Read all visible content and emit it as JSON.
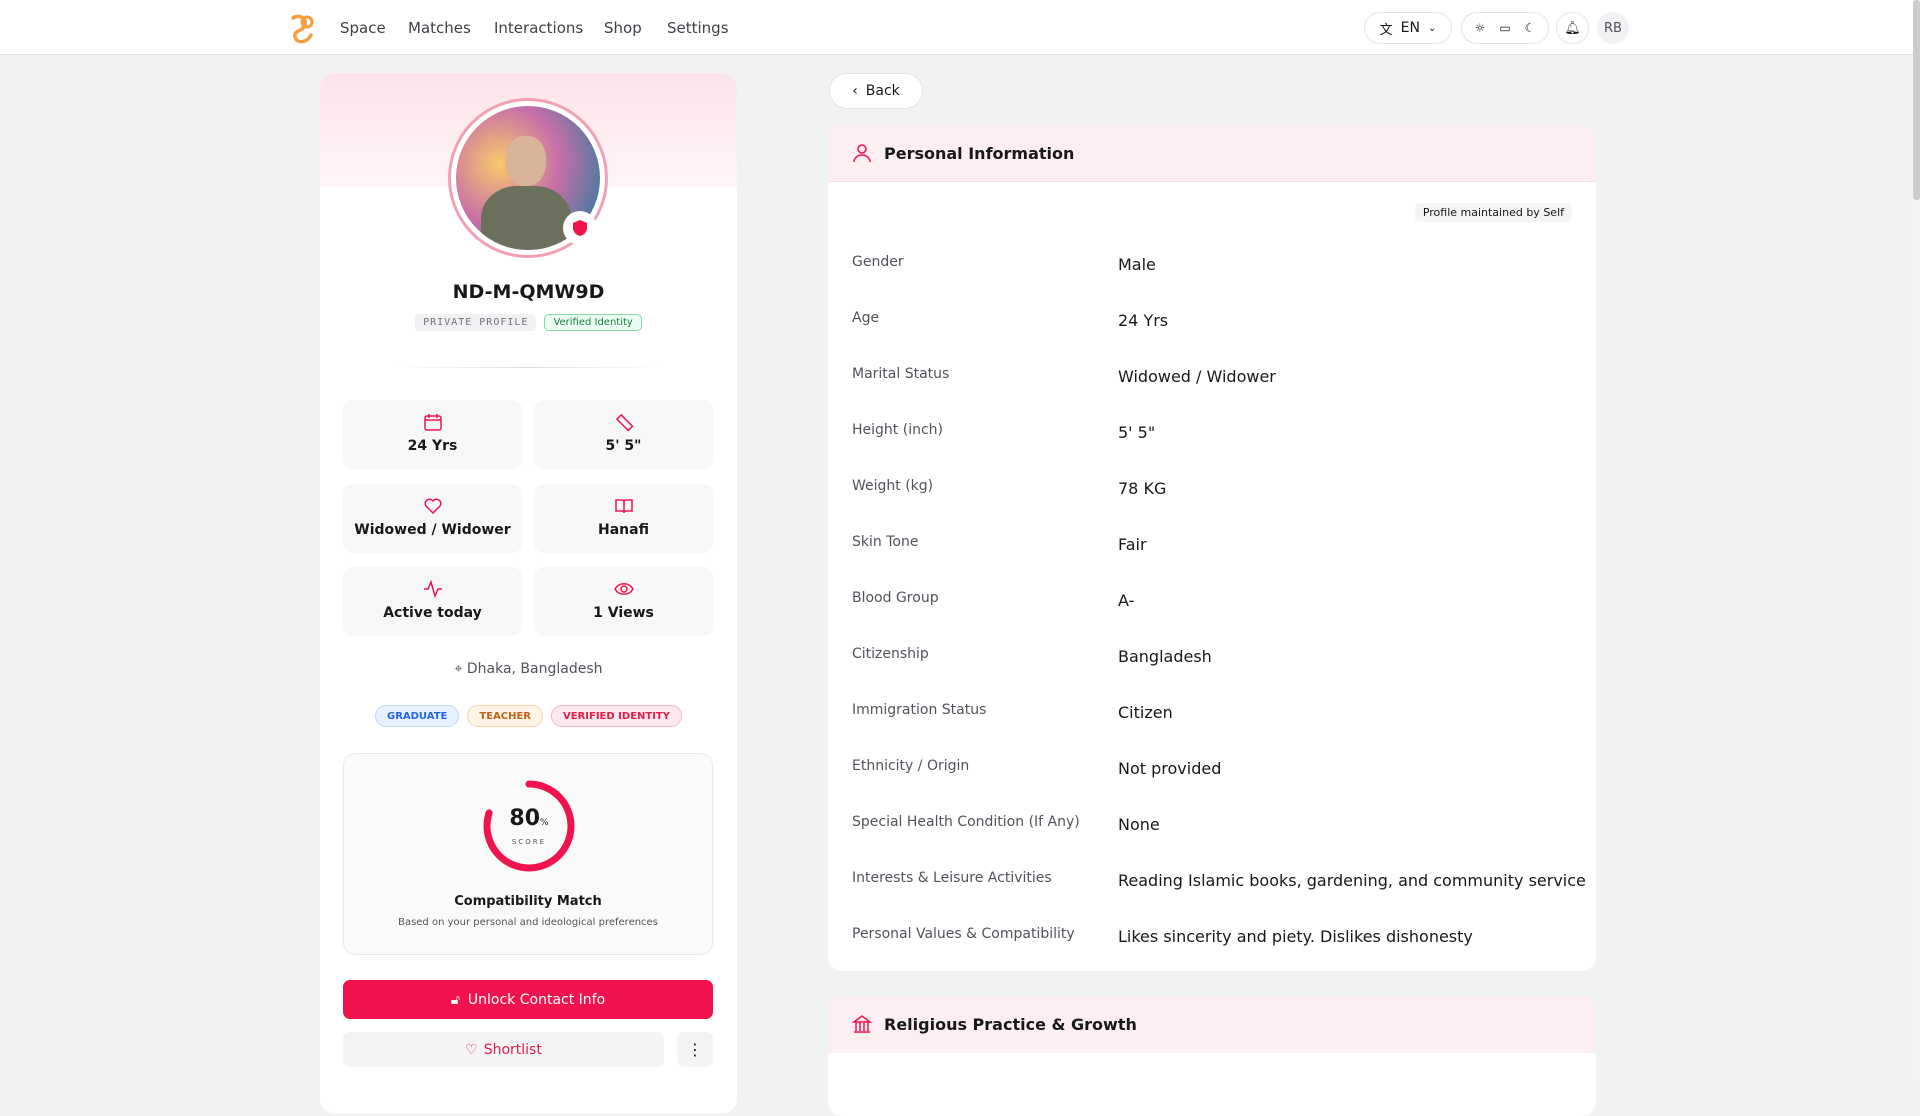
{
  "nav": {
    "items": [
      "Space",
      "Matches",
      "Interactions",
      "Shop",
      "Settings"
    ],
    "language": "EN",
    "avatar": "RB"
  },
  "profile": {
    "name": "ND-M-QMW9D",
    "badges": [
      "PRIVATE PROFILE",
      "Verified Identity"
    ],
    "stats": [
      "24 Yrs",
      "5' 5\"",
      "Widowed / Widower",
      "Hanafi",
      "Active today",
      "1 Views"
    ],
    "location": "Dhaka, Bangladesh",
    "tags": [
      "GRADUATE",
      "TEACHER",
      "VERIFIED IDENTITY"
    ],
    "compatibility": {
      "score": "80",
      "unit": "%",
      "score_label": "SCORE",
      "title": "Compatibility Match",
      "subtitle": "Based on your personal and ideological preferences"
    },
    "unlock": "Unlock Contact Info",
    "shortlist": "Shortlist"
  },
  "back": "Back",
  "personal_info": {
    "title": "Personal Information",
    "maintained": "Profile maintained by Self",
    "rows": [
      [
        "Gender",
        "Male"
      ],
      [
        "Age",
        "24 Yrs"
      ],
      [
        "Marital Status",
        "Widowed / Widower"
      ],
      [
        "Height (inch)",
        "5' 5\""
      ],
      [
        "Weight (kg)",
        "78 KG"
      ],
      [
        "Skin Tone",
        "Fair"
      ],
      [
        "Blood Group",
        "A-"
      ],
      [
        "Citizenship",
        "Bangladesh"
      ],
      [
        "Immigration Status",
        "Citizen"
      ],
      [
        "Ethnicity / Origin",
        "Not provided"
      ],
      [
        "Special Health Condition (If Any)",
        "None"
      ],
      [
        "Interests & Leisure Activities",
        "Reading Islamic books, gardening, and community service"
      ],
      [
        "Personal Values & Compatibility",
        "Likes sincerity and piety. Dislikes dishonesty"
      ]
    ]
  },
  "religious": {
    "title": "Religious Practice & Growth"
  }
}
